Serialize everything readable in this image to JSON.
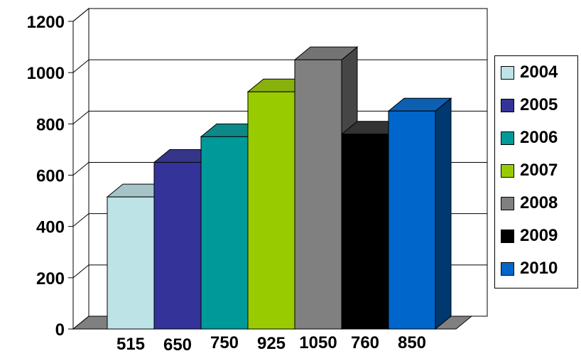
{
  "chart_data": {
    "type": "bar",
    "categories": [
      "515",
      "650",
      "750",
      "925",
      "1050",
      "760",
      "850"
    ],
    "values": [
      515,
      650,
      750,
      925,
      1050,
      760,
      850
    ],
    "series_names": [
      "2004",
      "2005",
      "2006",
      "2007",
      "2008",
      "2009",
      "2010"
    ],
    "y_ticks": [
      "0",
      "200",
      "400",
      "600",
      "800",
      "1000",
      "1200"
    ],
    "ylim": [
      0,
      1200
    ],
    "grid": true,
    "legend_position": "right",
    "three_d": true,
    "colors": [
      "#bde3e6",
      "#333399",
      "#009999",
      "#99cc00",
      "#808080",
      "#000000",
      "#0066cc"
    ]
  }
}
